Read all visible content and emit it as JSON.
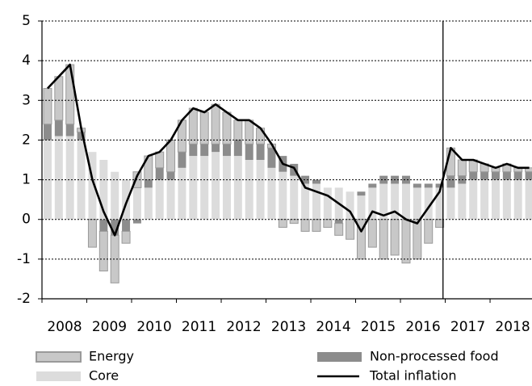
{
  "chart_data": {
    "type": "bar",
    "stacked": true,
    "x": [
      2008.125,
      2008.375,
      2008.625,
      2008.875,
      2009.125,
      2009.375,
      2009.625,
      2009.875,
      2010.125,
      2010.375,
      2010.625,
      2010.875,
      2011.125,
      2011.375,
      2011.625,
      2011.875,
      2012.125,
      2012.375,
      2012.625,
      2012.875,
      2013.125,
      2013.375,
      2013.625,
      2013.875,
      2014.125,
      2014.375,
      2014.625,
      2014.875,
      2015.125,
      2015.375,
      2015.625,
      2015.875,
      2016.125,
      2016.375,
      2016.625,
      2016.875,
      2017.125,
      2017.375,
      2017.625,
      2017.875,
      2018.125,
      2018.375,
      2018.625,
      2018.875
    ],
    "series": [
      {
        "name": "Core",
        "type": "bar",
        "color": "#dcdcdc",
        "values": [
          2.0,
          2.1,
          2.1,
          2.0,
          1.7,
          1.5,
          1.2,
          1.0,
          0.8,
          0.8,
          1.0,
          1.0,
          1.3,
          1.6,
          1.6,
          1.7,
          1.6,
          1.6,
          1.5,
          1.5,
          1.3,
          1.2,
          1.1,
          0.9,
          0.9,
          0.8,
          0.8,
          0.7,
          0.6,
          0.8,
          0.9,
          0.9,
          0.9,
          0.8,
          0.8,
          0.8,
          0.8,
          0.9,
          1.0,
          1.0,
          1.0,
          1.0,
          1.0,
          1.0
        ]
      },
      {
        "name": "Non-processed food",
        "type": "bar",
        "color": "#8c8c8c",
        "values": [
          0.4,
          0.4,
          0.3,
          0.2,
          0.0,
          -0.3,
          -0.4,
          -0.3,
          -0.1,
          0.2,
          0.3,
          0.2,
          0.4,
          0.3,
          0.3,
          0.2,
          0.3,
          0.4,
          0.4,
          0.4,
          0.5,
          0.4,
          0.3,
          0.2,
          0.1,
          0.0,
          -0.1,
          0.0,
          0.1,
          0.1,
          0.2,
          0.2,
          0.2,
          0.1,
          0.1,
          0.1,
          0.3,
          0.2,
          0.2,
          0.2,
          0.2,
          0.2,
          0.2,
          0.2
        ]
      },
      {
        "name": "Energy",
        "type": "bar",
        "color": "#c8c8c8",
        "values": [
          0.9,
          1.1,
          1.5,
          0.1,
          -0.7,
          -1.0,
          -1.2,
          -0.3,
          0.4,
          0.6,
          0.4,
          0.8,
          0.8,
          0.9,
          0.8,
          1.0,
          0.8,
          0.5,
          0.6,
          0.4,
          0.1,
          -0.2,
          -0.1,
          -0.3,
          -0.3,
          -0.2,
          -0.3,
          -0.5,
          -1.0,
          -0.7,
          -1.0,
          -0.9,
          -1.1,
          -1.0,
          -0.6,
          -0.2,
          0.7,
          0.4,
          0.3,
          0.2,
          0.1,
          0.2,
          0.1,
          0.1
        ]
      },
      {
        "name": "Total inflation",
        "type": "line",
        "color": "#000000",
        "values": [
          3.3,
          3.6,
          3.9,
          2.3,
          1.0,
          0.2,
          -0.4,
          0.4,
          1.1,
          1.6,
          1.7,
          2.0,
          2.5,
          2.8,
          2.7,
          2.9,
          2.7,
          2.5,
          2.5,
          2.3,
          1.9,
          1.4,
          1.3,
          0.8,
          0.7,
          0.6,
          0.4,
          0.2,
          -0.3,
          0.2,
          0.1,
          0.2,
          0.0,
          -0.1,
          0.3,
          0.7,
          1.8,
          1.5,
          1.5,
          1.4,
          1.3,
          1.4,
          1.3,
          1.3
        ]
      }
    ],
    "vline_x": 2016.95,
    "xlim": [
      2008,
      2018.9
    ],
    "xticks": [
      2008,
      2009,
      2010,
      2011,
      2012,
      2013,
      2014,
      2015,
      2016,
      2017,
      2018
    ],
    "ylim": [
      -2,
      5
    ],
    "yticks": [
      -2,
      -1,
      0,
      1,
      2,
      3,
      4,
      5
    ],
    "grid": true,
    "legend": "bottom"
  }
}
